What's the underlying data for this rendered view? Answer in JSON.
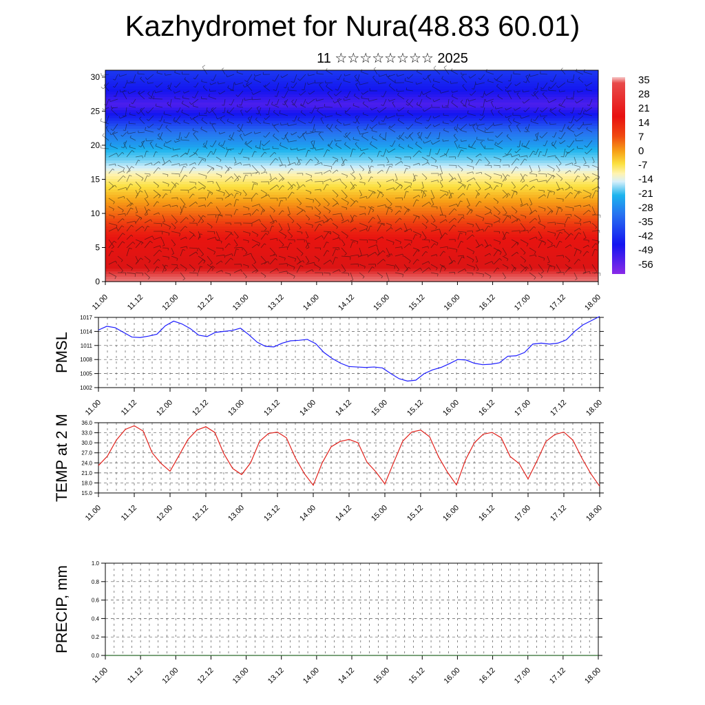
{
  "header": {
    "title": "Kazhydromet for Nura(48.83 60.01)",
    "subtitle": "11 ☆☆☆☆☆☆☆☆ 2025"
  },
  "colors": {
    "pressure_line": "#1a1aff",
    "temp_line": "#e0201a",
    "precip_line": "#2a6a2a",
    "grid": "#555555"
  },
  "chart_data": [
    {
      "type": "heatmap",
      "name": "temperature-wind-cross-section",
      "title": "",
      "xlabel": "",
      "ylabel": "",
      "x_tick_labels": [
        "11.00",
        "11.12",
        "12.00",
        "12.12",
        "13.00",
        "13.12",
        "14.00",
        "14.12",
        "15.00",
        "15.12",
        "16.00",
        "16.12",
        "17.00",
        "17.12",
        "18.00"
      ],
      "y_ticks": [
        0,
        5,
        10,
        15,
        20,
        25,
        30
      ],
      "ylim": [
        0,
        31
      ],
      "colorbar_labels": [
        "35",
        "28",
        "21",
        "14",
        "7",
        "0",
        "-7",
        "-14",
        "-21",
        "-28",
        "-35",
        "-42",
        "-49",
        "-56"
      ],
      "colorbar_range": [
        -60,
        37
      ],
      "profile": {
        "heights": [
          0,
          2,
          4,
          6,
          8,
          10,
          12,
          14,
          16,
          17,
          18,
          20,
          22,
          24,
          26,
          28,
          31
        ],
        "values": [
          33,
          30,
          26,
          22,
          18,
          12,
          7,
          0,
          -8,
          -14,
          -22,
          -34,
          -42,
          -50,
          -56,
          -52,
          -48
        ]
      },
      "overlay": "wind barbs"
    },
    {
      "type": "line",
      "name": "PMSL",
      "ylabel": "PMSL",
      "ylim": [
        1002,
        1017
      ],
      "y_ticks": [
        1002,
        1005,
        1008,
        1011,
        1014,
        1017
      ],
      "x_tick_labels": [
        "11.00",
        "11.12",
        "12.00",
        "12.12",
        "13.00",
        "13.12",
        "14.00",
        "14.12",
        "15.00",
        "15.12",
        "16.00",
        "16.12",
        "17.00",
        "17.12",
        "18.00"
      ],
      "grid": true,
      "series": [
        {
          "values": [
            1014.3,
            1015.1,
            1014.8,
            1013.8,
            1012.8,
            1012.7,
            1013.0,
            1013.4,
            1015.2,
            1016.2,
            1015.6,
            1014.6,
            1013.2,
            1012.9,
            1013.8,
            1014.0,
            1014.2,
            1014.7,
            1013.3,
            1011.7,
            1010.8,
            1010.7,
            1011.5,
            1012.0,
            1012.1,
            1012.3,
            1011.4,
            1009.5,
            1008.2,
            1007.2,
            1006.5,
            1006.4,
            1006.3,
            1006.4,
            1006.2,
            1005.0,
            1003.9,
            1003.4,
            1003.6,
            1005.0,
            1005.8,
            1006.3,
            1007.1,
            1008.0,
            1007.9,
            1007.2,
            1006.9,
            1007.0,
            1007.3,
            1008.7,
            1008.8,
            1009.5,
            1011.3,
            1011.5,
            1011.3,
            1011.5,
            1012.2,
            1014.0,
            1015.4,
            1016.3,
            1017.2
          ]
        }
      ]
    },
    {
      "type": "line",
      "name": "TEMP at 2 M",
      "ylabel": "TEMP at 2 M",
      "ylim": [
        15,
        36
      ],
      "y_ticks": [
        "15.0",
        "18.0",
        "21.0",
        "24.0",
        "27.0",
        "30.0",
        "33.0",
        "36.0"
      ],
      "x_tick_labels": [
        "11.00",
        "11.12",
        "12.00",
        "12.12",
        "13.00",
        "13.12",
        "14.00",
        "14.12",
        "15.00",
        "15.12",
        "16.00",
        "16.12",
        "17.00",
        "17.12",
        "18.00"
      ],
      "grid": true,
      "series": [
        {
          "values": [
            23.2,
            26.0,
            30.8,
            34.0,
            35.1,
            33.5,
            27.0,
            23.8,
            21.5,
            26.2,
            31.0,
            33.8,
            34.8,
            33.1,
            26.8,
            22.3,
            20.5,
            24.0,
            30.4,
            32.8,
            33.2,
            31.5,
            25.5,
            20.8,
            17.3,
            24.0,
            28.8,
            30.4,
            31.0,
            30.0,
            24.2,
            21.3,
            17.7,
            24.2,
            30.5,
            33.2,
            33.8,
            31.8,
            25.8,
            21.2,
            17.4,
            24.8,
            30.0,
            32.6,
            33.1,
            31.5,
            25.9,
            23.8,
            19.2,
            24.6,
            30.4,
            32.5,
            33.2,
            30.8,
            25.5,
            20.8,
            17.0
          ]
        }
      ]
    },
    {
      "type": "line",
      "name": "PRECIP, mm",
      "ylabel": "PRECIP, mm",
      "ylim": [
        0,
        1
      ],
      "y_ticks": [
        "0.0",
        "0.2",
        "0.4",
        "0.6",
        "0.8",
        "1.0"
      ],
      "x_tick_labels": [
        "11.00",
        "11.12",
        "12.00",
        "12.12",
        "13.00",
        "13.12",
        "14.00",
        "14.12",
        "15.00",
        "15.12",
        "16.00",
        "16.12",
        "17.00",
        "17.12",
        "18.00"
      ],
      "grid": true,
      "series": [
        {
          "values": [
            0,
            0,
            0,
            0,
            0,
            0,
            0,
            0,
            0,
            0,
            0,
            0,
            0,
            0,
            0,
            0,
            0,
            0,
            0,
            0,
            0,
            0,
            0,
            0,
            0,
            0,
            0,
            0,
            0,
            0,
            0,
            0,
            0,
            0,
            0,
            0,
            0,
            0,
            0,
            0,
            0,
            0,
            0,
            0,
            0,
            0,
            0,
            0,
            0,
            0,
            0,
            0,
            0,
            0,
            0,
            0,
            0,
            0,
            0
          ]
        }
      ]
    }
  ]
}
